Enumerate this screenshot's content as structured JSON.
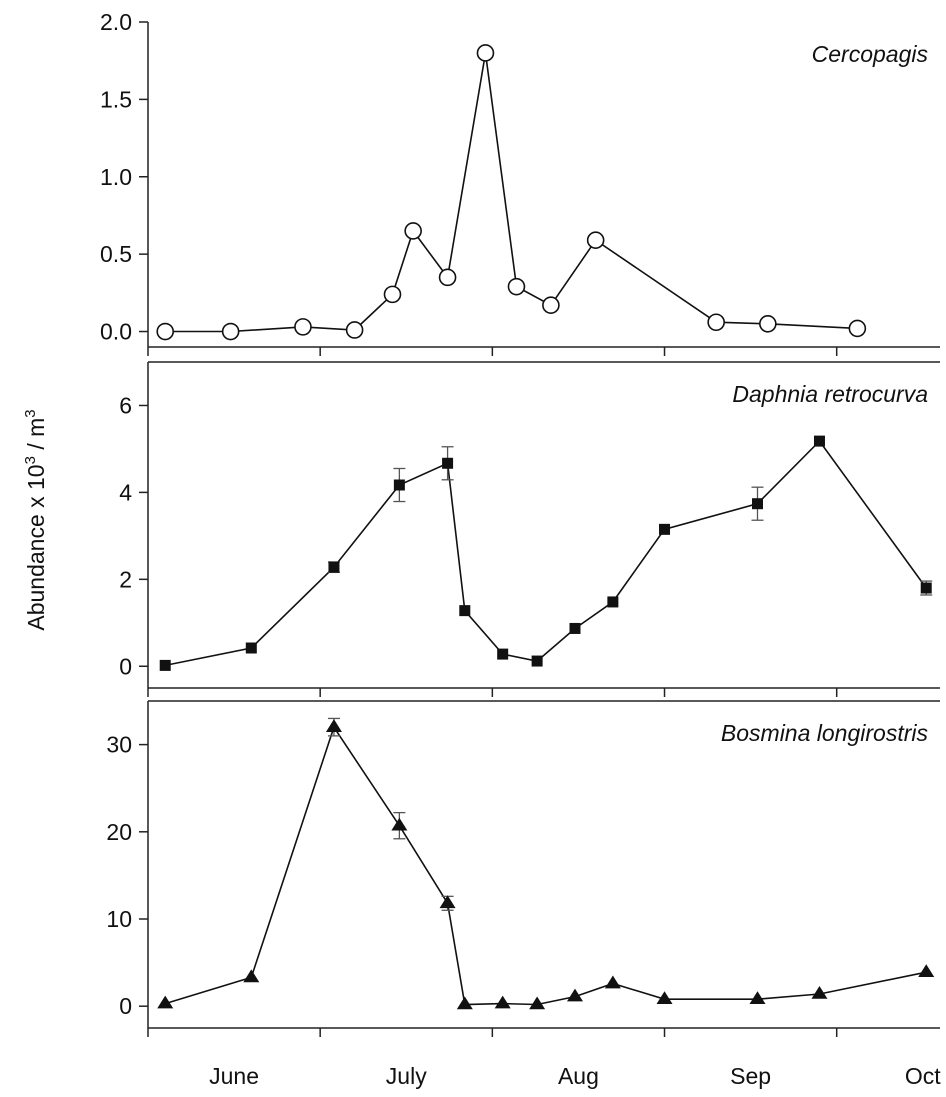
{
  "y_label": "Abundance x 10",
  "y_label_sup": "3",
  "y_label_mid": " / m",
  "y_label_sup2": "3",
  "x_months": [
    "June",
    "July",
    "Aug",
    "Sep",
    "Oct"
  ],
  "chart_data": [
    {
      "type": "line",
      "title": "Cercopagis",
      "marker": "open-circle",
      "ylim": [
        -0.1,
        2.0
      ],
      "yticks": [
        0.0,
        0.5,
        1.0,
        1.5,
        2.0
      ],
      "ytick_labels": [
        "0.0",
        "0.5",
        "1.0",
        "1.5",
        "2.0"
      ],
      "x": [
        5,
        24,
        45,
        60,
        71,
        77,
        87,
        98,
        107,
        117,
        130,
        165,
        180,
        206
      ],
      "values": [
        0.0,
        0.0,
        0.03,
        0.01,
        0.24,
        0.65,
        0.35,
        1.8,
        0.29,
        0.17,
        0.59,
        0.06,
        0.05,
        0.02
      ],
      "errors": [
        0,
        0,
        0,
        0,
        0,
        0,
        0,
        0,
        0,
        0,
        0,
        0,
        0,
        0
      ]
    },
    {
      "type": "line",
      "title": "Daphnia retrocurva",
      "marker": "filled-square",
      "ylim": [
        -0.5,
        7.0
      ],
      "yticks": [
        0,
        2,
        4,
        6
      ],
      "ytick_labels": [
        "0",
        "2",
        "4",
        "6"
      ],
      "x": [
        5,
        30,
        54,
        73,
        87,
        92,
        103,
        113,
        124,
        135,
        150,
        177,
        195,
        226
      ],
      "values": [
        0.02,
        0.42,
        2.28,
        4.17,
        4.67,
        1.28,
        0.28,
        0.12,
        0.87,
        1.48,
        3.15,
        3.74,
        5.18,
        1.8
      ],
      "errors": [
        0,
        0,
        0.12,
        0.38,
        0.38,
        0,
        0,
        0,
        0,
        0,
        0,
        0.38,
        0,
        0.16
      ]
    },
    {
      "type": "line",
      "title": "Bosmina longirostris",
      "marker": "filled-triangle",
      "ylim": [
        -2.5,
        35.0
      ],
      "yticks": [
        0,
        10,
        20,
        30
      ],
      "ytick_labels": [
        "0",
        "10",
        "20",
        "30"
      ],
      "x": [
        5,
        30,
        54,
        73,
        87,
        92,
        103,
        113,
        124,
        135,
        150,
        177,
        195,
        226
      ],
      "values": [
        0.3,
        3.3,
        32.0,
        20.7,
        11.8,
        0.2,
        0.3,
        0.2,
        1.1,
        2.6,
        0.8,
        0.8,
        1.4,
        3.9
      ],
      "errors": [
        0,
        0,
        1.0,
        1.5,
        0.8,
        0,
        0,
        0,
        0,
        0,
        0,
        0,
        0,
        0
      ]
    }
  ]
}
